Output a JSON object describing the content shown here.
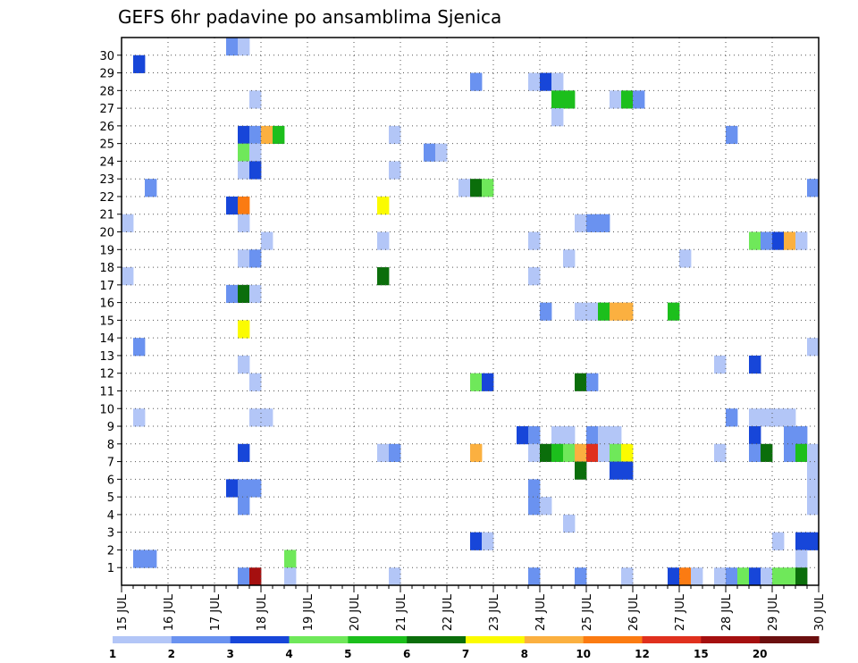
{
  "chart_data": {
    "type": "heatmap",
    "title": "GEFS 6hr padavine po ansamblima Sjenica",
    "xlabel": "",
    "ylabel": "",
    "x_tick_labels": [
      "15 JUL",
      "16 JUL",
      "17 JUL",
      "18 JUL",
      "19 JUL",
      "20 JUL",
      "21 JUL",
      "22 JUL",
      "23 JUL",
      "24 JUL",
      "25 JUL",
      "26 JUL",
      "27 JUL",
      "28 JUL",
      "29 JUL",
      "30 JUL"
    ],
    "y_tick_labels": [
      "1",
      "2",
      "3",
      "4",
      "5",
      "6",
      "7",
      "8",
      "9",
      "10",
      "11",
      "12",
      "13",
      "14",
      "15",
      "16",
      "17",
      "18",
      "19",
      "20",
      "21",
      "22",
      "23",
      "24",
      "25",
      "26",
      "27",
      "28",
      "29",
      "30"
    ],
    "x_range_steps": [
      0,
      60
    ],
    "y_range_members": [
      0,
      30
    ],
    "steps_per_day": 4,
    "grid": true,
    "colorbar": {
      "levels": [
        "1",
        "2",
        "3",
        "4",
        "5",
        "6",
        "7",
        "8",
        "10",
        "12",
        "15",
        "20"
      ],
      "colors": [
        "#b3c6f7",
        "#6a92f0",
        "#1746d9",
        "#6fe85a",
        "#1cbf1c",
        "#0b6e0b",
        "#fbfb00",
        "#fbb040",
        "#fb7b12",
        "#e0301e",
        "#a50f0f",
        "#6b0f0f"
      ]
    },
    "cells": [
      [
        9,
        30,
        1
      ],
      [
        10,
        30,
        0
      ],
      [
        1,
        29,
        2
      ],
      [
        30,
        28,
        1
      ],
      [
        35,
        28,
        0
      ],
      [
        36,
        28,
        2
      ],
      [
        37,
        28,
        0
      ],
      [
        11,
        27,
        0
      ],
      [
        37,
        27,
        4
      ],
      [
        38,
        27,
        4
      ],
      [
        42,
        27,
        0
      ],
      [
        43,
        27,
        4
      ],
      [
        44,
        27,
        1
      ],
      [
        37,
        26,
        0
      ],
      [
        10,
        25,
        2
      ],
      [
        11,
        25,
        1
      ],
      [
        12,
        25,
        7
      ],
      [
        13,
        25,
        4
      ],
      [
        23,
        25,
        0
      ],
      [
        52,
        25,
        1
      ],
      [
        10,
        24,
        3
      ],
      [
        11,
        24,
        0
      ],
      [
        26,
        24,
        1
      ],
      [
        27,
        24,
        0
      ],
      [
        10,
        23,
        0
      ],
      [
        11,
        23,
        2
      ],
      [
        23,
        23,
        0
      ],
      [
        2,
        22,
        1
      ],
      [
        29,
        22,
        0
      ],
      [
        30,
        22,
        5
      ],
      [
        31,
        22,
        3
      ],
      [
        59,
        22,
        1
      ],
      [
        9,
        21,
        2
      ],
      [
        10,
        21,
        8
      ],
      [
        22,
        21,
        6
      ],
      [
        0,
        20,
        0
      ],
      [
        10,
        20,
        0
      ],
      [
        39,
        20,
        0
      ],
      [
        40,
        20,
        1
      ],
      [
        41,
        20,
        1
      ],
      [
        12,
        19,
        0
      ],
      [
        22,
        19,
        0
      ],
      [
        35,
        19,
        0
      ],
      [
        54,
        19,
        3
      ],
      [
        55,
        19,
        1
      ],
      [
        56,
        19,
        2
      ],
      [
        57,
        19,
        7
      ],
      [
        58,
        19,
        0
      ],
      [
        10,
        18,
        0
      ],
      [
        11,
        18,
        1
      ],
      [
        38,
        18,
        0
      ],
      [
        48,
        18,
        0
      ],
      [
        0,
        17,
        0
      ],
      [
        22,
        17,
        5
      ],
      [
        35,
        17,
        0
      ],
      [
        9,
        16,
        1
      ],
      [
        10,
        16,
        5
      ],
      [
        11,
        16,
        0
      ],
      [
        36,
        15,
        1
      ],
      [
        39,
        15,
        0
      ],
      [
        40,
        15,
        0
      ],
      [
        41,
        15,
        4
      ],
      [
        42,
        15,
        7
      ],
      [
        43,
        15,
        7
      ],
      [
        47,
        15,
        4
      ],
      [
        10,
        14,
        6
      ],
      [
        1,
        13,
        1
      ],
      [
        59,
        13,
        0
      ],
      [
        10,
        12,
        0
      ],
      [
        51,
        12,
        0
      ],
      [
        54,
        12,
        2
      ],
      [
        11,
        11,
        0
      ],
      [
        30,
        11,
        3
      ],
      [
        31,
        11,
        2
      ],
      [
        39,
        11,
        5
      ],
      [
        40,
        11,
        1
      ],
      [
        1,
        9,
        0
      ],
      [
        11,
        9,
        0
      ],
      [
        12,
        9,
        0
      ],
      [
        52,
        9,
        1
      ],
      [
        54,
        9,
        0
      ],
      [
        55,
        9,
        0
      ],
      [
        56,
        9,
        0
      ],
      [
        57,
        9,
        0
      ],
      [
        34,
        8,
        2
      ],
      [
        35,
        8,
        1
      ],
      [
        37,
        8,
        0
      ],
      [
        38,
        8,
        0
      ],
      [
        40,
        8,
        1
      ],
      [
        41,
        8,
        0
      ],
      [
        42,
        8,
        0
      ],
      [
        54,
        8,
        2
      ],
      [
        57,
        8,
        1
      ],
      [
        58,
        8,
        1
      ],
      [
        10,
        7,
        2
      ],
      [
        22,
        7,
        0
      ],
      [
        23,
        7,
        1
      ],
      [
        30,
        7,
        7
      ],
      [
        35,
        7,
        0
      ],
      [
        36,
        7,
        5
      ],
      [
        37,
        7,
        4
      ],
      [
        38,
        7,
        3
      ],
      [
        39,
        7,
        7
      ],
      [
        40,
        7,
        9
      ],
      [
        41,
        7,
        0
      ],
      [
        42,
        7,
        3
      ],
      [
        43,
        7,
        6
      ],
      [
        51,
        7,
        0
      ],
      [
        54,
        7,
        1
      ],
      [
        55,
        7,
        5
      ],
      [
        57,
        7,
        1
      ],
      [
        58,
        7,
        4
      ],
      [
        59,
        7,
        0
      ],
      [
        39,
        6,
        5
      ],
      [
        42,
        6,
        2
      ],
      [
        43,
        6,
        2
      ],
      [
        59,
        6,
        0
      ],
      [
        9,
        5,
        2
      ],
      [
        10,
        5,
        1
      ],
      [
        11,
        5,
        1
      ],
      [
        35,
        5,
        1
      ],
      [
        59,
        5,
        0
      ],
      [
        10,
        4,
        1
      ],
      [
        35,
        4,
        1
      ],
      [
        36,
        4,
        0
      ],
      [
        59,
        4,
        0
      ],
      [
        38,
        3,
        0
      ],
      [
        30,
        2,
        2
      ],
      [
        31,
        2,
        0
      ],
      [
        56,
        2,
        0
      ],
      [
        58,
        2,
        2
      ],
      [
        59,
        2,
        2
      ],
      [
        1,
        1,
        1
      ],
      [
        2,
        1,
        1
      ],
      [
        14,
        1,
        3
      ],
      [
        58,
        1,
        0
      ],
      [
        10,
        0,
        1
      ],
      [
        11,
        0,
        10
      ],
      [
        14,
        0,
        0
      ],
      [
        23,
        0,
        0
      ],
      [
        35,
        0,
        1
      ],
      [
        39,
        0,
        1
      ],
      [
        43,
        0,
        0
      ],
      [
        47,
        0,
        2
      ],
      [
        48,
        0,
        8
      ],
      [
        49,
        0,
        0
      ],
      [
        51,
        0,
        0
      ],
      [
        52,
        0,
        1
      ],
      [
        53,
        0,
        3
      ],
      [
        54,
        0,
        2
      ],
      [
        55,
        0,
        0
      ],
      [
        56,
        0,
        3
      ],
      [
        57,
        0,
        3
      ],
      [
        58,
        0,
        5
      ]
    ]
  }
}
